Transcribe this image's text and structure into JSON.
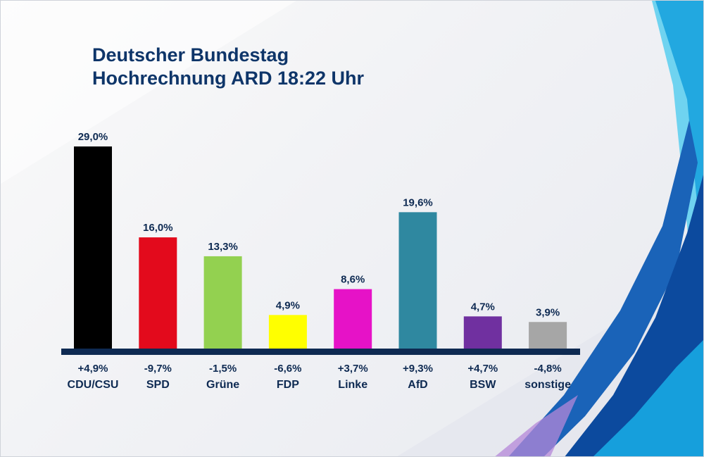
{
  "title_line1": "Deutscher Bundestag",
  "title_line2": "Hochrechnung ARD 18:22 Uhr",
  "chart_data": {
    "type": "bar",
    "title": "Deutscher Bundestag Hochrechnung ARD 18:22 Uhr",
    "categories": [
      "CDU/CSU",
      "SPD",
      "Grüne",
      "FDP",
      "Linke",
      "AfD",
      "BSW",
      "sonstige"
    ],
    "values": [
      29.0,
      16.0,
      13.3,
      4.9,
      8.6,
      19.6,
      4.7,
      3.9
    ],
    "value_labels": [
      "29,0%",
      "16,0%",
      "13,3%",
      "4,9%",
      "8,6%",
      "19,6%",
      "4,7%",
      "3,9%"
    ],
    "changes": [
      4.9,
      -9.7,
      -1.5,
      -6.6,
      3.7,
      9.3,
      4.7,
      -4.8
    ],
    "change_labels": [
      "+4,9%",
      "-9,7%",
      "-1,5%",
      "-6,6%",
      "+3,7%",
      "+9,3%",
      "+4,7%",
      "-4,8%"
    ],
    "colors": [
      "#000000",
      "#e30a1c",
      "#93d150",
      "#ffff00",
      "#e612c7",
      "#2f88a0",
      "#7030a0",
      "#a6a6a6"
    ],
    "axis_color": "#0e2a52",
    "ylim": [
      0,
      30
    ]
  }
}
